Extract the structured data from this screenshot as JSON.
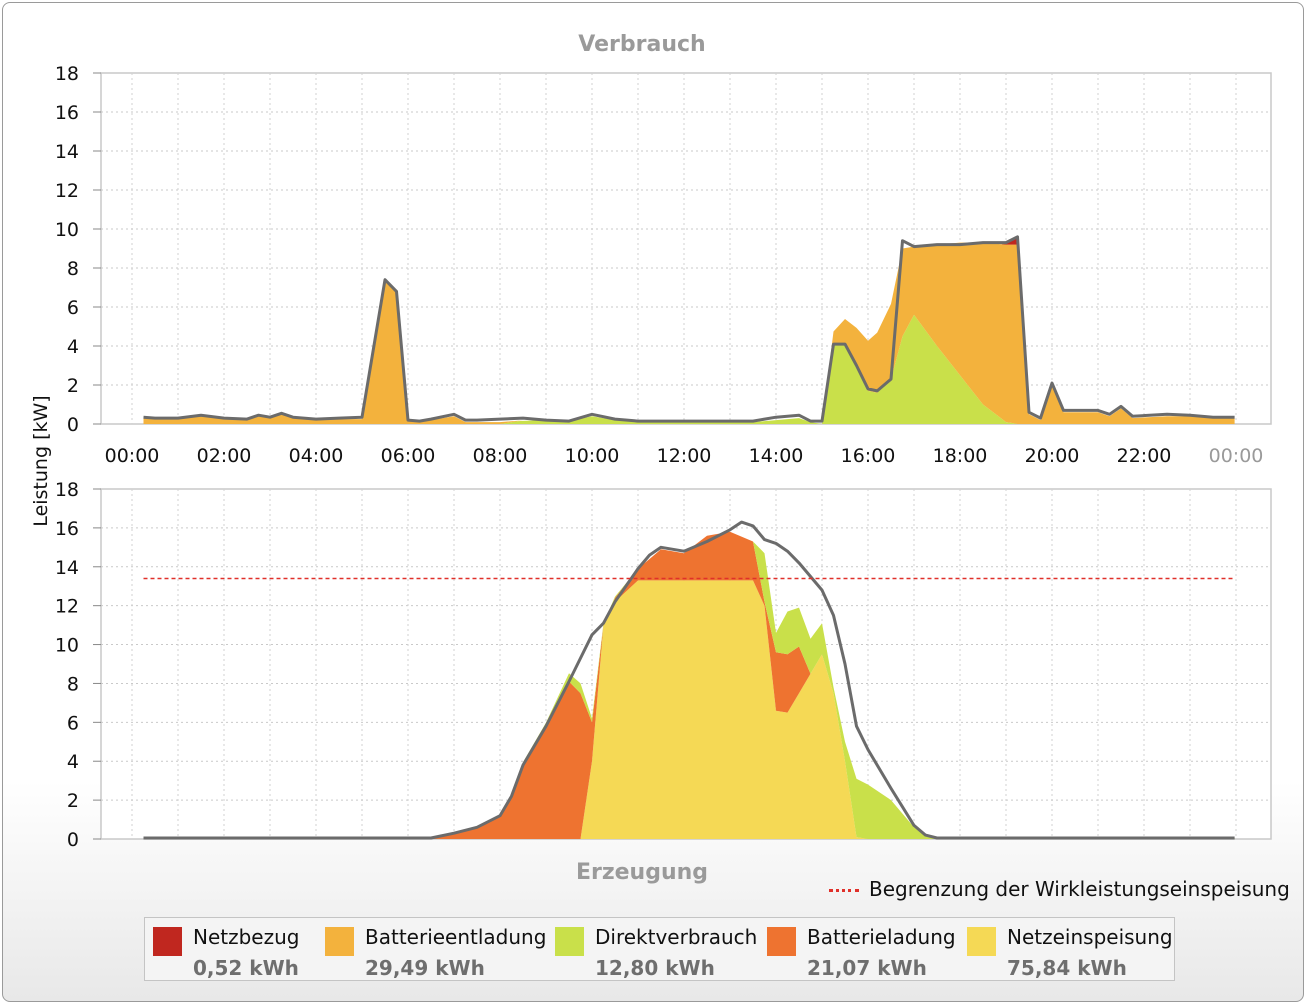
{
  "charts_meta": {
    "y_axis_label": "Leistung [kW]",
    "limit_label": "Begrenzung der Wirkleistungseinspeisung",
    "colors": {
      "Netzbezug": "#c0271f",
      "Batterieentladung": "#f3b23d",
      "Direktverbrauch": "#c9e04a",
      "Batterieladung": "#ee7330",
      "Netzeinspeisung": "#f5d955",
      "total_line": "#6b6b6b",
      "limit_line": "#e0302a"
    }
  },
  "legend": [
    {
      "name": "Netzbezug",
      "value": "0,52 kWh",
      "color": "#c0271f"
    },
    {
      "name": "Batterieentladung",
      "value": "29,49 kWh",
      "color": "#f3b23d"
    },
    {
      "name": "Direktverbrauch",
      "value": "12,80 kWh",
      "color": "#c9e04a"
    },
    {
      "name": "Batterieladung",
      "value": "21,07 kWh",
      "color": "#ee7330"
    },
    {
      "name": "Netzeinspeisung",
      "value": "75,84 kWh",
      "color": "#f5d955"
    }
  ],
  "chart_data": [
    {
      "type": "area",
      "title": "Verbrauch",
      "ylabel": "Leistung [kW]",
      "ylim": [
        0,
        18
      ],
      "y_ticks": [
        0,
        2,
        4,
        6,
        8,
        10,
        12,
        14,
        16,
        18
      ],
      "x_ticks": [
        "00:00",
        "02:00",
        "04:00",
        "06:00",
        "08:00",
        "10:00",
        "12:00",
        "14:00",
        "16:00",
        "18:00",
        "20:00",
        "22:00",
        "00:00"
      ],
      "grid": true,
      "series": [
        {
          "name": "Direktverbrauch",
          "values": [
            [
              0.25,
              0
            ],
            [
              8.0,
              0
            ],
            [
              8.4,
              0.15
            ],
            [
              9.0,
              0.2
            ],
            [
              9.5,
              0.15
            ],
            [
              10.0,
              0.4
            ],
            [
              10.5,
              0.2
            ],
            [
              11.0,
              0.1
            ],
            [
              13.5,
              0.1
            ],
            [
              14.5,
              0.3
            ],
            [
              14.75,
              0.1
            ],
            [
              15.0,
              0
            ],
            [
              15.25,
              4.1
            ],
            [
              15.5,
              4.1
            ],
            [
              15.75,
              3.0
            ],
            [
              16.0,
              1.7
            ],
            [
              16.2,
              1.6
            ],
            [
              16.5,
              2.3
            ],
            [
              16.75,
              4.5
            ],
            [
              17.0,
              5.6
            ],
            [
              17.5,
              4.0
            ],
            [
              18.0,
              2.5
            ],
            [
              18.5,
              1.0
            ],
            [
              19.0,
              0.1
            ],
            [
              19.25,
              0
            ],
            [
              23.97,
              0
            ]
          ]
        },
        {
          "name": "Batterieentladung",
          "values": [
            [
              0.25,
              0.3
            ],
            [
              0.5,
              0.25
            ],
            [
              1.0,
              0.25
            ],
            [
              1.5,
              0.4
            ],
            [
              2.0,
              0.25
            ],
            [
              2.5,
              0.2
            ],
            [
              2.75,
              0.4
            ],
            [
              3.0,
              0.35
            ],
            [
              3.25,
              0.5
            ],
            [
              3.5,
              0.3
            ],
            [
              4.0,
              0.2
            ],
            [
              4.5,
              0.25
            ],
            [
              5.0,
              0.25
            ],
            [
              5.5,
              7.4
            ],
            [
              5.75,
              6.7
            ],
            [
              6.0,
              0.15
            ],
            [
              6.25,
              0.1
            ],
            [
              6.5,
              0.2
            ],
            [
              7.0,
              0.4
            ],
            [
              7.25,
              0.1
            ],
            [
              7.5,
              0.1
            ],
            [
              8.0,
              0.1
            ],
            [
              8.5,
              0
            ],
            [
              15.0,
              0
            ],
            [
              16.75,
              4.5
            ],
            [
              17.0,
              3.5
            ],
            [
              17.5,
              5.2
            ],
            [
              18.0,
              6.8
            ],
            [
              18.5,
              8.3
            ],
            [
              19.0,
              9.1
            ],
            [
              19.25,
              9.2
            ],
            [
              19.5,
              0.5
            ],
            [
              19.75,
              0.2
            ],
            [
              20.0,
              2.0
            ],
            [
              20.25,
              0.6
            ],
            [
              21.0,
              0.6
            ],
            [
              21.25,
              0.4
            ],
            [
              21.5,
              0.8
            ],
            [
              21.75,
              0.3
            ],
            [
              22.5,
              0.4
            ],
            [
              23.0,
              0.4
            ],
            [
              23.5,
              0.3
            ],
            [
              23.97,
              0.3
            ]
          ]
        },
        {
          "name": "Netzbezug",
          "values": [
            [
              0.25,
              0
            ],
            [
              18.9,
              0
            ],
            [
              19.1,
              0.2
            ],
            [
              19.25,
              0.4
            ],
            [
              19.4,
              0
            ],
            [
              23.97,
              0
            ]
          ]
        }
      ],
      "total": [
        [
          0.25,
          0.35
        ],
        [
          0.5,
          0.3
        ],
        [
          1.0,
          0.3
        ],
        [
          1.5,
          0.45
        ],
        [
          2.0,
          0.3
        ],
        [
          2.5,
          0.25
        ],
        [
          2.75,
          0.45
        ],
        [
          3.0,
          0.35
        ],
        [
          3.25,
          0.55
        ],
        [
          3.5,
          0.35
        ],
        [
          4.0,
          0.25
        ],
        [
          4.5,
          0.3
        ],
        [
          5.0,
          0.35
        ],
        [
          5.5,
          7.4
        ],
        [
          5.75,
          6.8
        ],
        [
          6.0,
          0.2
        ],
        [
          6.25,
          0.15
        ],
        [
          6.5,
          0.25
        ],
        [
          7.0,
          0.5
        ],
        [
          7.25,
          0.2
        ],
        [
          7.5,
          0.2
        ],
        [
          8.0,
          0.25
        ],
        [
          8.5,
          0.3
        ],
        [
          9.0,
          0.2
        ],
        [
          9.5,
          0.15
        ],
        [
          10.0,
          0.5
        ],
        [
          10.5,
          0.25
        ],
        [
          11.0,
          0.15
        ],
        [
          12.0,
          0.15
        ],
        [
          13.0,
          0.15
        ],
        [
          13.5,
          0.15
        ],
        [
          14.0,
          0.35
        ],
        [
          14.5,
          0.45
        ],
        [
          14.75,
          0.15
        ],
        [
          15.0,
          0.15
        ],
        [
          15.25,
          4.1
        ],
        [
          15.5,
          4.1
        ],
        [
          15.75,
          3.0
        ],
        [
          16.0,
          1.8
        ],
        [
          16.2,
          1.7
        ],
        [
          16.5,
          2.3
        ],
        [
          16.75,
          9.4
        ],
        [
          17.0,
          9.1
        ],
        [
          17.5,
          9.2
        ],
        [
          18.0,
          9.2
        ],
        [
          18.5,
          9.3
        ],
        [
          19.0,
          9.3
        ],
        [
          19.25,
          9.6
        ],
        [
          19.5,
          0.6
        ],
        [
          19.75,
          0.3
        ],
        [
          20.0,
          2.1
        ],
        [
          20.25,
          0.7
        ],
        [
          21.0,
          0.7
        ],
        [
          21.25,
          0.5
        ],
        [
          21.5,
          0.9
        ],
        [
          21.75,
          0.4
        ],
        [
          22.5,
          0.5
        ],
        [
          23.0,
          0.45
        ],
        [
          23.5,
          0.35
        ],
        [
          23.97,
          0.35
        ]
      ]
    },
    {
      "type": "area",
      "title": "Erzeugung",
      "ylabel": "Leistung [kW]",
      "ylim": [
        0,
        18
      ],
      "y_ticks": [
        0,
        2,
        4,
        6,
        8,
        10,
        12,
        14,
        16,
        18
      ],
      "grid": true,
      "limit_value": 13.4,
      "series": [
        {
          "name": "Netzeinspeisung",
          "values": [
            [
              0.25,
              0
            ],
            [
              9.75,
              0
            ],
            [
              10.0,
              4.0
            ],
            [
              10.25,
              11.0
            ],
            [
              10.5,
              12.2
            ],
            [
              11.0,
              13.3
            ],
            [
              12.0,
              13.3
            ],
            [
              13.0,
              13.3
            ],
            [
              13.5,
              13.3
            ],
            [
              13.75,
              12.0
            ],
            [
              14.0,
              6.6
            ],
            [
              14.25,
              6.5
            ],
            [
              14.5,
              7.5
            ],
            [
              15.0,
              9.5
            ],
            [
              15.25,
              7.5
            ],
            [
              15.5,
              4.0
            ],
            [
              15.75,
              0.1
            ],
            [
              16.0,
              0
            ],
            [
              23.97,
              0
            ]
          ]
        },
        {
          "name": "Batterieladung",
          "values": [
            [
              0.25,
              0
            ],
            [
              6.5,
              0
            ],
            [
              7.0,
              0.3
            ],
            [
              7.5,
              0.6
            ],
            [
              8.0,
              1.2
            ],
            [
              8.25,
              2.2
            ],
            [
              8.5,
              3.8
            ],
            [
              9.0,
              5.7
            ],
            [
              9.5,
              8.1
            ],
            [
              9.75,
              7.5
            ],
            [
              10.0,
              2.0
            ],
            [
              10.25,
              0
            ],
            [
              11.0,
              0.6
            ],
            [
              11.5,
              1.6
            ],
            [
              12.0,
              1.4
            ],
            [
              12.5,
              2.3
            ],
            [
              13.0,
              2.5
            ],
            [
              13.5,
              2.0
            ],
            [
              13.75,
              0.2
            ],
            [
              14.0,
              3.0
            ],
            [
              14.25,
              3.0
            ],
            [
              14.5,
              2.4
            ],
            [
              14.75,
              0
            ],
            [
              23.97,
              0
            ]
          ]
        },
        {
          "name": "Direktverbrauch",
          "values": [
            [
              0.25,
              0
            ],
            [
              6.5,
              0
            ],
            [
              8.0,
              0
            ],
            [
              9.75,
              0.5
            ],
            [
              10.0,
              0.2
            ],
            [
              10.25,
              0.1
            ],
            [
              11.0,
              0
            ],
            [
              13.0,
              0
            ],
            [
              13.5,
              0
            ],
            [
              13.75,
              2.5
            ],
            [
              14.0,
              1.0
            ],
            [
              14.25,
              2.2
            ],
            [
              14.5,
              2.0
            ],
            [
              15.0,
              1.6
            ],
            [
              15.25,
              0.3
            ],
            [
              15.5,
              1.0
            ],
            [
              15.75,
              3.0
            ],
            [
              16.0,
              2.8
            ],
            [
              16.5,
              2.0
            ],
            [
              17.0,
              0.6
            ],
            [
              17.25,
              0.15
            ],
            [
              17.5,
              0.05
            ],
            [
              23.97,
              0.05
            ]
          ]
        }
      ],
      "total": [
        [
          0.25,
          0.05
        ],
        [
          6.5,
          0.05
        ],
        [
          7.0,
          0.3
        ],
        [
          7.5,
          0.6
        ],
        [
          8.0,
          1.2
        ],
        [
          8.25,
          2.2
        ],
        [
          8.5,
          3.8
        ],
        [
          9.0,
          5.8
        ],
        [
          9.5,
          8.1
        ],
        [
          10.0,
          10.5
        ],
        [
          10.25,
          11.1
        ],
        [
          10.5,
          12.2
        ],
        [
          11.0,
          13.9
        ],
        [
          11.25,
          14.6
        ],
        [
          11.5,
          15.0
        ],
        [
          12.0,
          14.8
        ],
        [
          12.5,
          15.3
        ],
        [
          13.0,
          15.9
        ],
        [
          13.25,
          16.3
        ],
        [
          13.5,
          16.1
        ],
        [
          13.75,
          15.4
        ],
        [
          14.0,
          15.2
        ],
        [
          14.25,
          14.8
        ],
        [
          14.5,
          14.2
        ],
        [
          15.0,
          12.8
        ],
        [
          15.25,
          11.5
        ],
        [
          15.5,
          9.0
        ],
        [
          15.75,
          5.8
        ],
        [
          16.0,
          4.6
        ],
        [
          16.5,
          2.6
        ],
        [
          17.0,
          0.7
        ],
        [
          17.25,
          0.2
        ],
        [
          17.5,
          0.05
        ],
        [
          23.97,
          0.05
        ]
      ]
    }
  ]
}
